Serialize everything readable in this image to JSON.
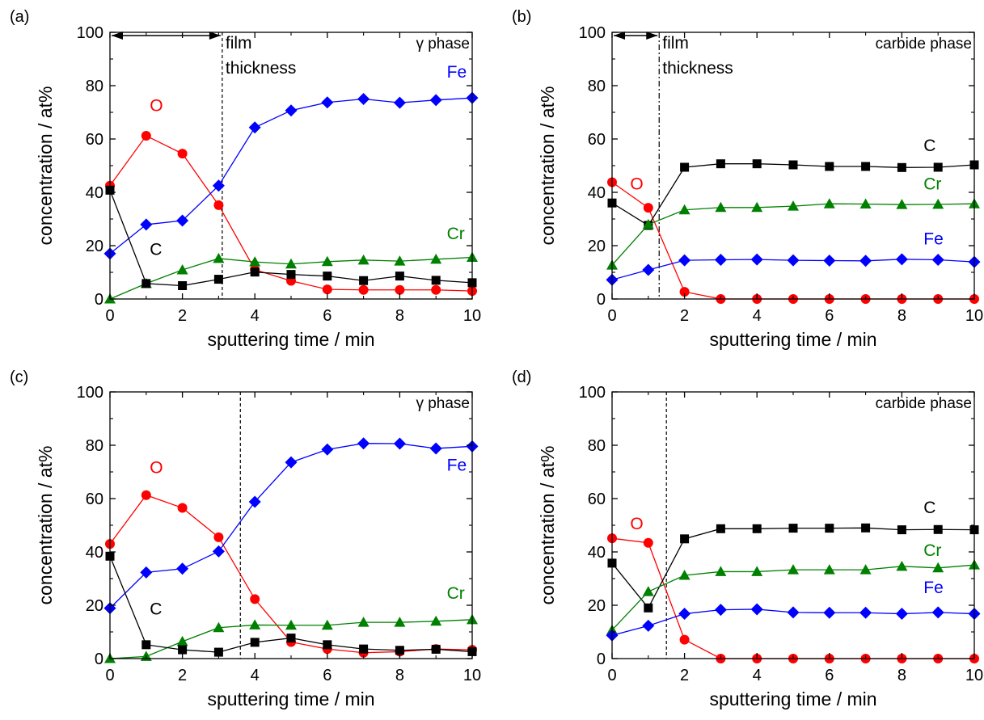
{
  "colors": {
    "O": "#ff0000",
    "Fe": "#0000ff",
    "Cr": "#008000",
    "C": "#000000",
    "axis": "#000000"
  },
  "chart_data": [
    {
      "panel_label": "(a)",
      "type": "line",
      "phase_label": "γ phase",
      "xlabel": "sputtering time / min",
      "ylabel": "concentration / at%",
      "xlim": [
        0,
        10
      ],
      "ylim": [
        0,
        100
      ],
      "xticks": [
        "0",
        "2",
        "4",
        "6",
        "8",
        "10"
      ],
      "yticks": [
        "0",
        "20",
        "40",
        "60",
        "80",
        "100"
      ],
      "x": [
        0,
        1,
        2,
        3,
        4,
        5,
        6,
        7,
        8,
        9,
        10
      ],
      "film_thickness_x": 3.1,
      "film_thickness_text": [
        "film",
        "thickness"
      ],
      "series": [
        {
          "name": "O",
          "marker": "circle",
          "values": [
            42.5,
            61.2,
            54.5,
            35.2,
            11.0,
            6.8,
            3.6,
            3.4,
            3.4,
            3.4,
            3.0
          ],
          "label_at": [
            1.1,
            70.5
          ]
        },
        {
          "name": "Fe",
          "marker": "diamond",
          "values": [
            17.0,
            27.9,
            29.4,
            42.5,
            64.3,
            70.7,
            73.7,
            75.0,
            73.6,
            74.6,
            75.4
          ],
          "label_at": [
            9.3,
            83.0
          ]
        },
        {
          "name": "Cr",
          "marker": "triangle",
          "values": [
            0.0,
            5.8,
            10.9,
            15.2,
            13.9,
            13.1,
            14.0,
            14.6,
            14.2,
            14.9,
            15.6
          ],
          "label_at": [
            9.3,
            22.5
          ]
        },
        {
          "name": "C",
          "marker": "square",
          "values": [
            40.8,
            5.8,
            5.0,
            7.4,
            10.1,
            9.2,
            8.6,
            6.9,
            8.6,
            7.0,
            6.1
          ],
          "label_at": [
            1.1,
            16.5
          ]
        }
      ]
    },
    {
      "panel_label": "(b)",
      "type": "line",
      "phase_label": "carbide phase",
      "xlabel": "sputtering time / min",
      "ylabel": "concentration / at%",
      "xlim": [
        0,
        10
      ],
      "ylim": [
        0,
        100
      ],
      "xticks": [
        "0",
        "2",
        "4",
        "6",
        "8",
        "10"
      ],
      "yticks": [
        "0",
        "20",
        "40",
        "60",
        "80",
        "100"
      ],
      "x": [
        0,
        1,
        2,
        3,
        4,
        5,
        6,
        7,
        8,
        9,
        10
      ],
      "film_thickness_x": 1.3,
      "film_thickness_text": [
        "film",
        "thickness"
      ],
      "series": [
        {
          "name": "O",
          "marker": "circle",
          "values": [
            43.8,
            34.2,
            2.7,
            0.0,
            0.0,
            0.0,
            0.0,
            0.0,
            0.0,
            0.0,
            0.0
          ],
          "label_at": [
            0.5,
            41.0
          ]
        },
        {
          "name": "C",
          "marker": "square",
          "values": [
            36.0,
            27.6,
            49.4,
            50.7,
            50.7,
            50.3,
            49.7,
            49.7,
            49.3,
            49.4,
            50.3
          ],
          "label_at": [
            8.6,
            55.5
          ]
        },
        {
          "name": "Cr",
          "marker": "triangle",
          "values": [
            12.7,
            27.9,
            33.4,
            34.3,
            34.3,
            34.8,
            35.7,
            35.6,
            35.4,
            35.5,
            35.7
          ],
          "label_at": [
            8.6,
            41.0
          ]
        },
        {
          "name": "Fe",
          "marker": "diamond",
          "values": [
            7.2,
            10.9,
            14.5,
            14.7,
            14.8,
            14.5,
            14.4,
            14.3,
            14.9,
            14.7,
            13.9
          ],
          "label_at": [
            8.6,
            20.5
          ]
        }
      ]
    },
    {
      "panel_label": "(c)",
      "type": "line",
      "phase_label": "γ phase",
      "xlabel": "sputtering time / min",
      "ylabel": "concentration / at%",
      "xlim": [
        0,
        10
      ],
      "ylim": [
        0,
        100
      ],
      "xticks": [
        "0",
        "2",
        "4",
        "6",
        "8",
        "10"
      ],
      "yticks": [
        "0",
        "20",
        "40",
        "60",
        "80",
        "100"
      ],
      "x": [
        0,
        1,
        2,
        3,
        4,
        5,
        6,
        7,
        8,
        9,
        10
      ],
      "film_thickness_x": 3.6,
      "film_thickness_text": [],
      "series": [
        {
          "name": "O",
          "marker": "circle",
          "values": [
            43.0,
            61.3,
            56.5,
            45.5,
            22.3,
            6.2,
            3.6,
            2.2,
            2.6,
            3.6,
            3.3
          ],
          "label_at": [
            1.1,
            69.5
          ]
        },
        {
          "name": "Fe",
          "marker": "diamond",
          "values": [
            18.9,
            32.3,
            33.7,
            40.2,
            58.8,
            73.6,
            78.4,
            80.7,
            80.6,
            78.8,
            79.6
          ],
          "label_at": [
            9.3,
            70.5
          ]
        },
        {
          "name": "Cr",
          "marker": "triangle",
          "values": [
            0.0,
            0.8,
            6.4,
            11.6,
            12.6,
            12.5,
            12.5,
            13.6,
            13.6,
            14.0,
            14.6
          ],
          "label_at": [
            9.3,
            22.5
          ]
        },
        {
          "name": "C",
          "marker": "square",
          "values": [
            38.4,
            5.2,
            3.3,
            2.4,
            6.1,
            7.7,
            5.2,
            3.6,
            3.1,
            3.5,
            2.6
          ],
          "label_at": [
            1.1,
            16.5
          ]
        }
      ]
    },
    {
      "panel_label": "(d)",
      "type": "line",
      "phase_label": "carbide phase",
      "xlabel": "sputtering time / min",
      "ylabel": "concentration / at%",
      "xlim": [
        0,
        10
      ],
      "ylim": [
        0,
        100
      ],
      "xticks": [
        "0",
        "2",
        "4",
        "6",
        "8",
        "10"
      ],
      "yticks": [
        "0",
        "20",
        "40",
        "60",
        "80",
        "100"
      ],
      "x": [
        0,
        1,
        2,
        3,
        4,
        5,
        6,
        7,
        8,
        9,
        10
      ],
      "film_thickness_x": 1.5,
      "film_thickness_text": [],
      "series": [
        {
          "name": "O",
          "marker": "circle",
          "values": [
            45.1,
            43.4,
            7.1,
            0.0,
            0.0,
            0.0,
            0.0,
            0.0,
            0.0,
            0.0,
            0.0
          ],
          "label_at": [
            0.5,
            48.5
          ]
        },
        {
          "name": "C",
          "marker": "square",
          "values": [
            35.8,
            19.0,
            44.9,
            48.7,
            48.7,
            48.9,
            48.9,
            49.0,
            48.3,
            48.4,
            48.3
          ],
          "label_at": [
            8.6,
            54.5
          ]
        },
        {
          "name": "Cr",
          "marker": "triangle",
          "values": [
            10.7,
            25.1,
            31.2,
            32.6,
            32.6,
            33.3,
            33.3,
            33.3,
            34.6,
            34.0,
            35.1
          ],
          "label_at": [
            8.6,
            38.5
          ]
        },
        {
          "name": "Fe",
          "marker": "diamond",
          "values": [
            8.7,
            12.3,
            16.8,
            18.3,
            18.5,
            17.3,
            17.2,
            17.2,
            16.8,
            17.3,
            16.8
          ],
          "label_at": [
            8.6,
            24.5
          ]
        }
      ]
    }
  ]
}
